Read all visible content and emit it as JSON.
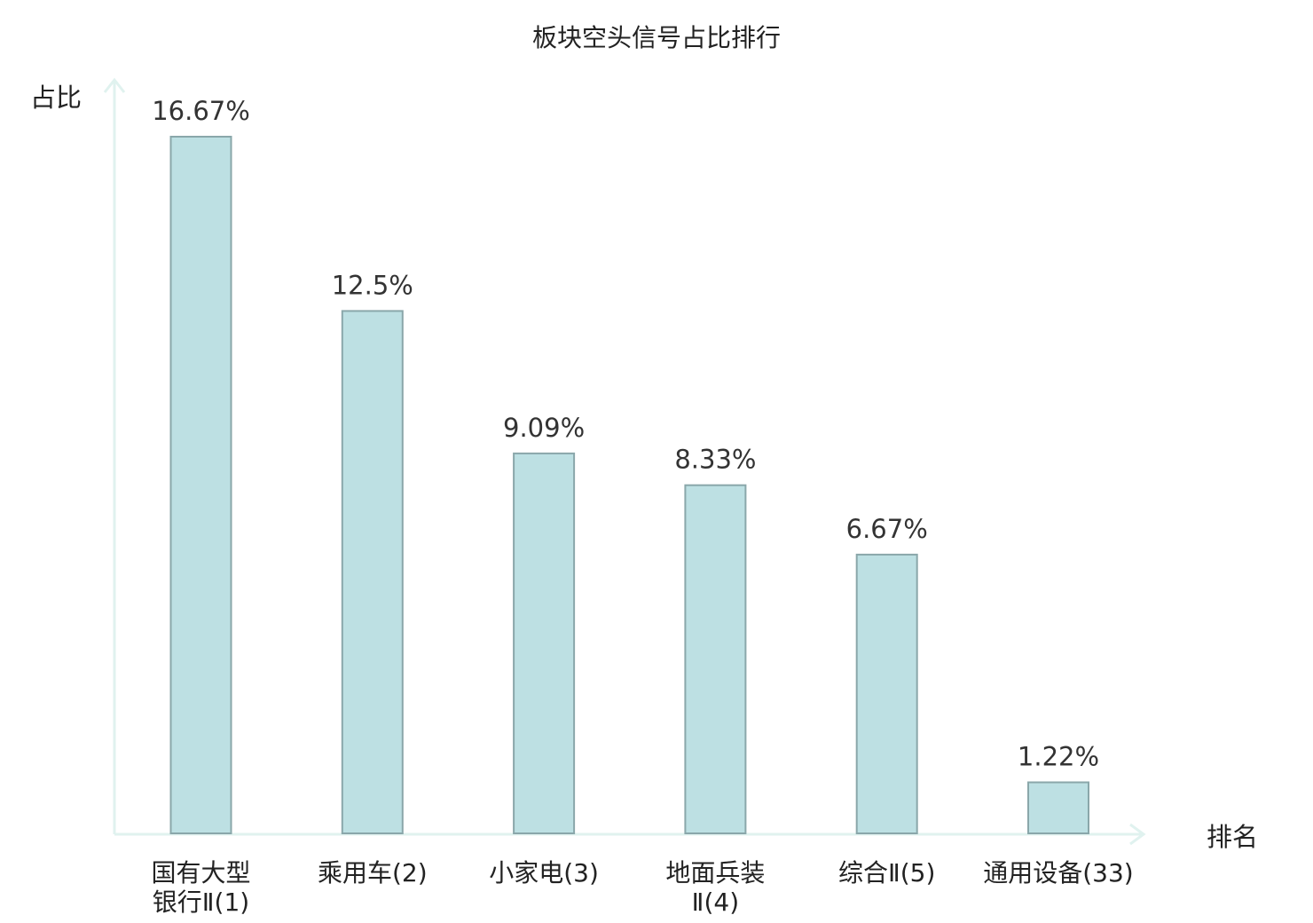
{
  "chart_data": {
    "type": "bar",
    "title": "板块空头信号占比排行",
    "ylabel": "占比",
    "xlabel": "排名",
    "categories": [
      [
        "国有大型",
        "银行Ⅱ(1)"
      ],
      [
        "乘用车(2)"
      ],
      [
        "小家电(3)"
      ],
      [
        "地面兵装",
        "Ⅱ(4)"
      ],
      [
        "综合Ⅱ(5)"
      ],
      [
        "通用设备(33)"
      ]
    ],
    "values": [
      16.67,
      12.5,
      9.09,
      8.33,
      6.67,
      1.22
    ],
    "value_labels": [
      "16.67%",
      "12.5%",
      "9.09%",
      "8.33%",
      "6.67%",
      "1.22%"
    ],
    "highlight_index": 5,
    "ylim": [
      0,
      16.67
    ],
    "grid": false,
    "legend": "none",
    "colors": {
      "bar_fill": "#bde0e3",
      "bar_stroke": "#8aa7aa",
      "axis": "#e0f2ef",
      "highlight_text": "#e02020",
      "text": "#222222"
    }
  }
}
